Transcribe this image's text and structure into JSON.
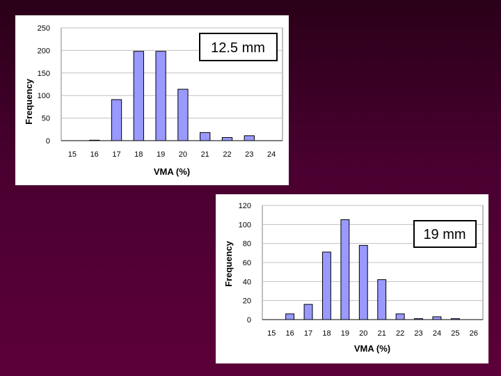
{
  "chart_data": [
    {
      "type": "bar",
      "xlabel": "VMA (%)",
      "ylabel": "Frequency",
      "annotation": "12.5 mm",
      "categories": [
        "15",
        "16",
        "17",
        "18",
        "19",
        "20",
        "21",
        "22",
        "23",
        "24"
      ],
      "values": [
        0,
        1,
        91,
        198,
        198,
        114,
        18,
        7,
        11,
        0
      ],
      "ylim": [
        0,
        250
      ],
      "yticks": [
        "0",
        "50",
        "100",
        "150",
        "200",
        "250"
      ],
      "grid": "horizontal",
      "bar_color": "#9999ff",
      "plot_bg": "#ffffff"
    },
    {
      "type": "bar",
      "xlabel": "VMA (%)",
      "ylabel": "Frequency",
      "annotation": "19 mm",
      "categories": [
        "15",
        "16",
        "17",
        "18",
        "19",
        "20",
        "21",
        "22",
        "23",
        "24",
        "25",
        "26"
      ],
      "values": [
        0,
        6,
        16,
        71,
        105,
        78,
        42,
        6,
        1,
        3,
        1,
        0
      ],
      "ylim": [
        0,
        120
      ],
      "yticks": [
        "0",
        "20",
        "40",
        "60",
        "80",
        "100",
        "120"
      ],
      "grid": "horizontal",
      "bar_color": "#9999ff",
      "plot_bg": "#ffffff"
    }
  ]
}
